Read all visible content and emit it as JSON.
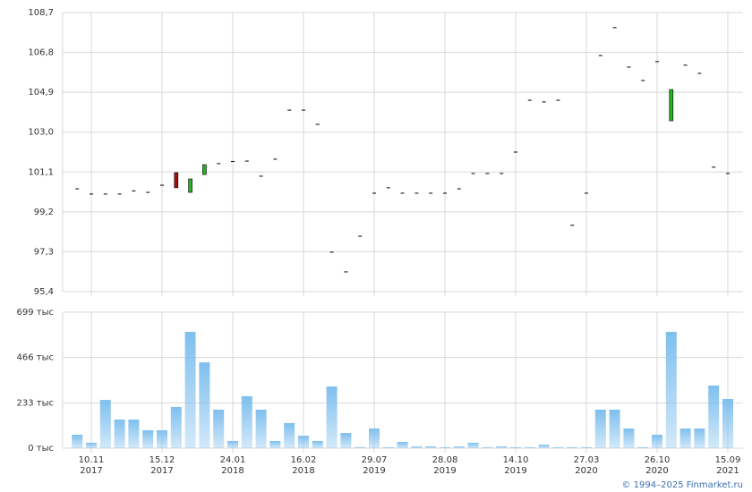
{
  "chart_data": [
    {
      "type": "candlestick",
      "up_color": "#22b422",
      "down_color": "#a01010",
      "flat_color": "#000000",
      "open": [
        100.3,
        100.05,
        100.05,
        100.05,
        100.2,
        100.13,
        100.47,
        101.07,
        100.13,
        100.98,
        101.5,
        101.6,
        101.62,
        100.9,
        101.71,
        104.05,
        104.05,
        103.37,
        97.28,
        96.34,
        98.04,
        100.09,
        100.35,
        100.09,
        100.09,
        100.09,
        100.09,
        100.3,
        101.03,
        101.03,
        101.03,
        102.05,
        104.52,
        104.44,
        104.52,
        98.56,
        100.09,
        106.65,
        107.98,
        106.1,
        105.46,
        106.36,
        103.54,
        106.19,
        105.8,
        101.33,
        101.03
      ],
      "close": [
        100.3,
        100.05,
        100.05,
        100.05,
        100.2,
        100.13,
        100.47,
        100.35,
        100.77,
        101.45,
        101.5,
        101.6,
        101.62,
        100.9,
        101.71,
        104.05,
        104.05,
        103.37,
        97.28,
        96.34,
        98.04,
        100.09,
        100.35,
        100.09,
        100.09,
        100.09,
        100.09,
        100.3,
        101.03,
        101.03,
        101.03,
        102.05,
        104.52,
        104.44,
        104.52,
        98.56,
        100.09,
        106.65,
        107.98,
        106.1,
        105.46,
        106.36,
        105.03,
        106.19,
        105.8,
        101.33,
        101.03
      ],
      "ylim": [
        95.4,
        108.7
      ],
      "yticks": [
        {
          "value": 95.4,
          "label": "95,4"
        },
        {
          "value": 97.3,
          "label": "97,3"
        },
        {
          "value": 99.2,
          "label": "99,2"
        },
        {
          "value": 101.1,
          "label": "101,1"
        },
        {
          "value": 103.0,
          "label": "103,0"
        },
        {
          "value": 104.9,
          "label": "104,9"
        },
        {
          "value": 106.8,
          "label": "106,8"
        },
        {
          "value": 108.7,
          "label": "108,7"
        }
      ],
      "grid": true
    },
    {
      "type": "bar",
      "color": "#7fbfee",
      "categories": [
        null,
        {
          "date": "10.11",
          "year": "2017"
        },
        null,
        null,
        null,
        null,
        {
          "date": "15.12",
          "year": "2017"
        },
        null,
        null,
        null,
        null,
        {
          "date": "24.01",
          "year": "2018"
        },
        null,
        null,
        null,
        null,
        {
          "date": "16.02",
          "year": "2018"
        },
        null,
        null,
        null,
        null,
        {
          "date": "29.07",
          "year": "2019"
        },
        null,
        null,
        null,
        null,
        {
          "date": "28.08",
          "year": "2019"
        },
        null,
        null,
        null,
        null,
        {
          "date": "14.10",
          "year": "2019"
        },
        null,
        null,
        null,
        null,
        {
          "date": "27.03",
          "year": "2020"
        },
        null,
        null,
        null,
        null,
        {
          "date": "26.10",
          "year": "2020"
        },
        null,
        null,
        null,
        null,
        {
          "date": "15.09",
          "year": "2021"
        }
      ],
      "values": [
        69,
        28,
        248,
        147,
        147,
        92,
        92,
        212,
        598,
        441,
        198,
        37,
        267,
        198,
        37,
        129,
        64,
        37,
        317,
        78,
        5,
        101,
        5,
        32,
        9,
        9,
        5,
        9,
        28,
        5,
        9,
        5,
        5,
        18,
        5,
        5,
        5,
        198,
        198,
        101,
        5,
        69,
        598,
        101,
        101,
        322,
        253
      ],
      "ylim": [
        0,
        699
      ],
      "yticks": [
        {
          "value": 0,
          "label": "0 тыс"
        },
        {
          "value": 233,
          "label": "233 тыс"
        },
        {
          "value": 466,
          "label": "466 тыс"
        },
        {
          "value": 699,
          "label": "699 тыс"
        }
      ],
      "grid": true
    }
  ],
  "footer": "© 1994–2025 Finmarket.ru"
}
